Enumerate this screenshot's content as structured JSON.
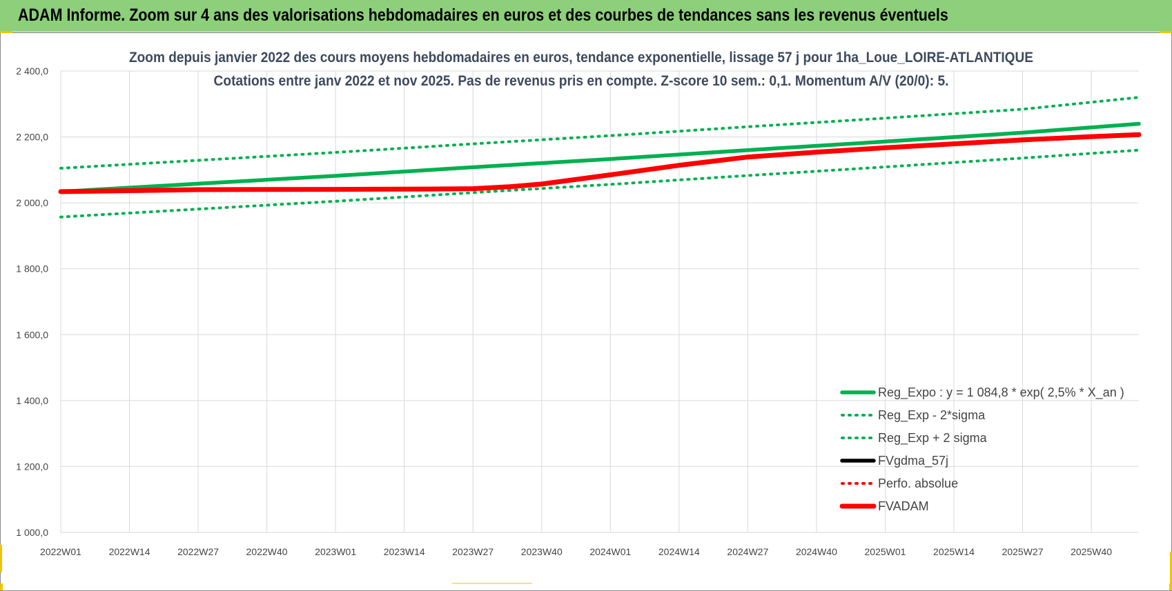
{
  "banner": {
    "title": "ADAM Informe. Zoom sur 4 ans des valorisations hebdomadaires en euros et des courbes de tendances sans les revenus éventuels"
  },
  "chart_data": {
    "type": "line",
    "title": "Zoom depuis janvier 2022 des cours moyens hebdomadaires en euros, tendance exponentielle, lissage 57 j pour 1ha_Loue_LOIRE-ATLANTIQUE",
    "subtitle": "Cotations entre janv 2022 et nov 2025. Pas de revenus pris en compte. Z-score 10 sem.: 0,1. Momentum A/V (20/0): 5.",
    "xlabel": "",
    "ylabel": "",
    "ylim": [
      1000,
      2400
    ],
    "yticks": [
      "1 000,0",
      "1 200,0",
      "1 400,0",
      "1 600,0",
      "1 800,0",
      "2 000,0",
      "2 200,0",
      "2 400,0"
    ],
    "ytick_values": [
      1000,
      1200,
      1400,
      1600,
      1800,
      2000,
      2200,
      2400
    ],
    "x_ticks": [
      "2022W01",
      "2022W14",
      "2022W27",
      "2022W40",
      "2023W01",
      "2023W14",
      "2023W27",
      "2023W40",
      "2024W01",
      "2024W14",
      "2024W27",
      "2024W40",
      "2025W01",
      "2025W14",
      "2025W27",
      "2025W40"
    ],
    "x_tick_weeks": [
      0,
      13,
      26,
      39,
      52,
      65,
      78,
      91,
      104,
      117,
      130,
      143,
      156,
      169,
      182,
      195
    ],
    "x_range_weeks": [
      0,
      204
    ],
    "grid": true,
    "legend_position": "bottom-right",
    "series": [
      {
        "name": "Reg_Expo : y = 1 084,8 * exp( 2,5% *  X_an )",
        "style": "solid",
        "color": "#00b050",
        "x": [
          0,
          26,
          52,
          78,
          104,
          130,
          156,
          182,
          204
        ],
        "values": [
          2034,
          2058,
          2082,
          2108,
          2133,
          2160,
          2186,
          2213,
          2240
        ]
      },
      {
        "name": "Reg_Exp - 2*sigma",
        "style": "dotted",
        "color": "#00b050",
        "x": [
          0,
          26,
          52,
          78,
          104,
          130,
          156,
          182,
          204
        ],
        "values": [
          1957,
          1981,
          2005,
          2031,
          2056,
          2083,
          2109,
          2136,
          2160
        ]
      },
      {
        "name": "Reg_Exp + 2 sigma",
        "style": "dotted",
        "color": "#00b050",
        "x": [
          0,
          26,
          52,
          78,
          104,
          130,
          156,
          182,
          204
        ],
        "values": [
          2105,
          2129,
          2153,
          2179,
          2204,
          2231,
          2257,
          2284,
          2320
        ]
      },
      {
        "name": "FVgdma_57j",
        "style": "solid",
        "color": "#000000",
        "x": [
          0,
          26,
          52,
          70,
          78,
          85,
          91,
          104,
          117,
          130,
          143,
          156,
          169,
          182,
          195,
          204
        ],
        "values": [
          2034,
          2040,
          2041,
          2042,
          2044,
          2050,
          2058,
          2086,
          2115,
          2140,
          2155,
          2168,
          2180,
          2192,
          2202,
          2208
        ]
      },
      {
        "name": "Perfo. absolue",
        "style": "dotted",
        "color": "#ff0000",
        "x": [
          0,
          26,
          52,
          70,
          78,
          85,
          91,
          104,
          117,
          130,
          143,
          156,
          169,
          182,
          195,
          204
        ],
        "values": [
          2034,
          2040,
          2041,
          2042,
          2043,
          2049,
          2057,
          2085,
          2114,
          2139,
          2154,
          2167,
          2179,
          2191,
          2201,
          2207
        ]
      },
      {
        "name": "FVADAM",
        "style": "solid-thick",
        "color": "#ff0000",
        "x": [
          0,
          26,
          52,
          70,
          78,
          85,
          91,
          104,
          117,
          130,
          143,
          156,
          169,
          182,
          195,
          204
        ],
        "values": [
          2034,
          2040,
          2041,
          2042,
          2043,
          2049,
          2057,
          2085,
          2114,
          2139,
          2154,
          2167,
          2179,
          2191,
          2201,
          2207
        ]
      }
    ]
  }
}
